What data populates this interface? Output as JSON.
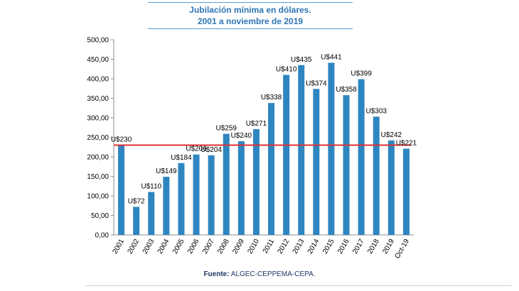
{
  "chart_data": {
    "type": "bar",
    "title_line1": "Jubilación mínima en dólares.",
    "title_line2": "2001 a noviembre de 2019",
    "categories": [
      "2001",
      "2002",
      "2003",
      "2004",
      "2005",
      "2006",
      "2007",
      "2008",
      "2009",
      "2010",
      "2011",
      "2012",
      "2013",
      "2014",
      "2015",
      "2016",
      "2017",
      "2018",
      "2019",
      "Oct-19"
    ],
    "values": [
      230,
      72,
      110,
      149,
      184,
      206,
      204,
      259,
      240,
      271,
      338,
      410,
      435,
      374,
      441,
      358,
      399,
      303,
      242,
      221
    ],
    "data_labels": [
      "U$230",
      "U$72",
      "U$110",
      "U$149",
      "U$184",
      "U$206",
      "U$204",
      "U$259",
      "U$240",
      "U$271",
      "U$338",
      "U$410",
      "U$435",
      "U$374",
      "U$441",
      "U$358",
      "U$399",
      "U$303",
      "U$242",
      "U$221"
    ],
    "ylim": [
      0,
      500
    ],
    "yticks": [
      "0,00",
      "50,00",
      "100,00",
      "150,00",
      "200,00",
      "250,00",
      "300,00",
      "350,00",
      "400,00",
      "450,00",
      "500,00"
    ],
    "reference_line_value": 230,
    "bar_color": "#2e86c1",
    "reference_line_color": "#e03131",
    "grid": false
  },
  "source": {
    "label": "Fuente:",
    "text": "ALGEC-CEPPEMA-CEPA."
  }
}
